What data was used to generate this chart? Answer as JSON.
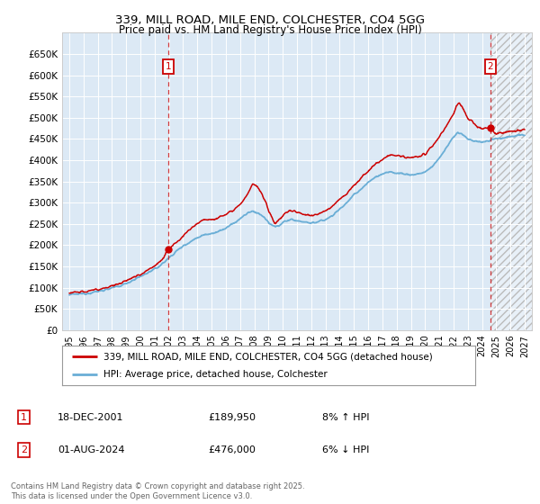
{
  "title_line1": "339, MILL ROAD, MILE END, COLCHESTER, CO4 5GG",
  "title_line2": "Price paid vs. HM Land Registry's House Price Index (HPI)",
  "bg_color": "#dce9f5",
  "hpi_color": "#6aaed6",
  "sale_color": "#cc0000",
  "ylim": [
    0,
    700000
  ],
  "yticks": [
    0,
    50000,
    100000,
    150000,
    200000,
    250000,
    300000,
    350000,
    400000,
    450000,
    500000,
    550000,
    600000,
    650000
  ],
  "ytick_labels": [
    "£0",
    "£50K",
    "£100K",
    "£150K",
    "£200K",
    "£250K",
    "£300K",
    "£350K",
    "£400K",
    "£450K",
    "£500K",
    "£550K",
    "£600K",
    "£650K"
  ],
  "sale1_x": 2001.96,
  "sale1_y": 189950,
  "sale1_label": "1",
  "sale1_date": "18-DEC-2001",
  "sale1_price": "£189,950",
  "sale1_hpi": "8% ↑ HPI",
  "sale2_x": 2024.58,
  "sale2_y": 476000,
  "sale2_label": "2",
  "sale2_date": "01-AUG-2024",
  "sale2_price": "£476,000",
  "sale2_hpi": "6% ↓ HPI",
  "legend_sale_label": "339, MILL ROAD, MILE END, COLCHESTER, CO4 5GG (detached house)",
  "legend_hpi_label": "HPI: Average price, detached house, Colchester",
  "footer": "Contains HM Land Registry data © Crown copyright and database right 2025.\nThis data is licensed under the Open Government Licence v3.0.",
  "xmin": 1994.5,
  "xmax": 2027.5
}
